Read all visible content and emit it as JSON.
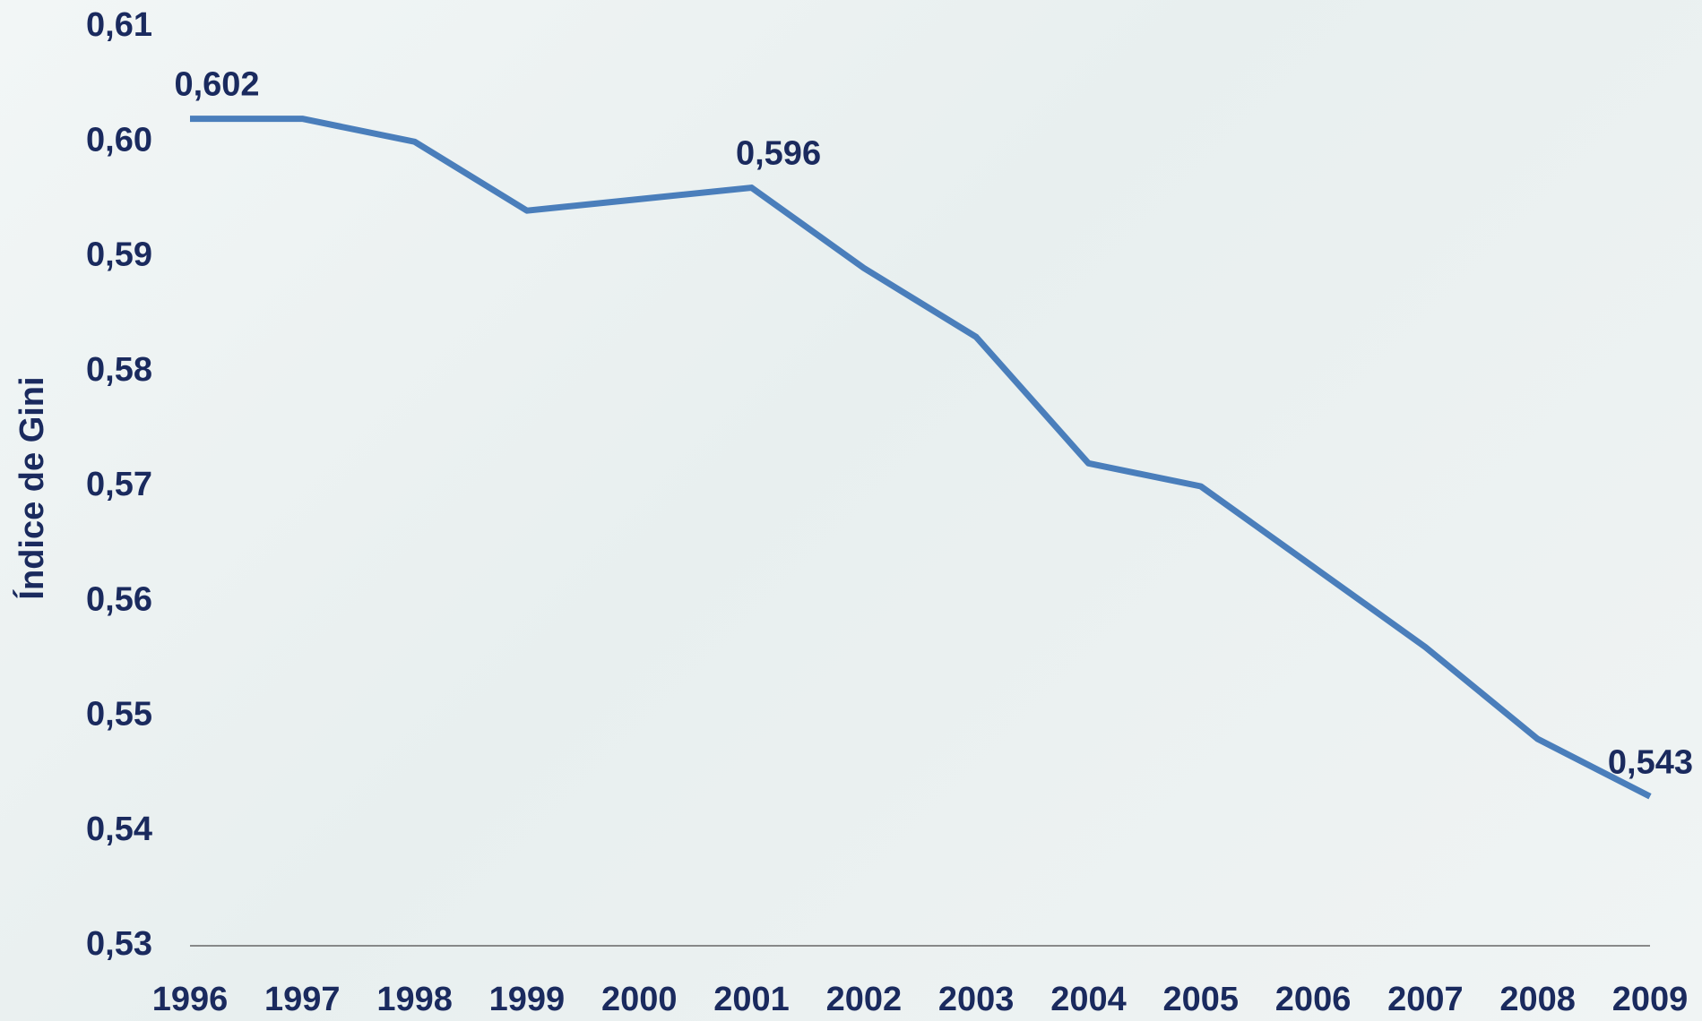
{
  "chart_data": {
    "type": "line",
    "y_label": "Índice de Gini",
    "categories": [
      "1996",
      "1997",
      "1998",
      "1999",
      "2000",
      "2001",
      "2002",
      "2003",
      "2004",
      "2005",
      "2006",
      "2007",
      "2008",
      "2009"
    ],
    "series": [
      {
        "color": "#4a7ebb",
        "values": [
          0.602,
          0.602,
          0.6,
          0.594,
          0.595,
          0.596,
          0.589,
          0.583,
          0.572,
          0.57,
          0.563,
          0.556,
          0.548,
          0.543
        ],
        "value_labels": [
          "0,602",
          null,
          null,
          null,
          null,
          "0,596",
          null,
          null,
          null,
          null,
          null,
          null,
          null,
          "0,543"
        ]
      }
    ],
    "ylim": [
      0.53,
      0.61
    ],
    "yticks": [
      {
        "value": 0.53,
        "label": "0,53"
      },
      {
        "value": 0.54,
        "label": "0,54"
      },
      {
        "value": 0.55,
        "label": "0,55"
      },
      {
        "value": 0.56,
        "label": "0,56"
      },
      {
        "value": 0.57,
        "label": "0,57"
      },
      {
        "value": 0.58,
        "label": "0,58"
      },
      {
        "value": 0.59,
        "label": "0,59"
      },
      {
        "value": 0.6,
        "label": "0,60"
      },
      {
        "value": 0.61,
        "label": "0,61"
      }
    ],
    "grid": false
  }
}
